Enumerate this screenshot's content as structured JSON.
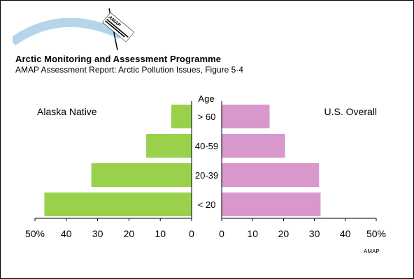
{
  "header": {
    "title": "Arctic Monitoring and Assessment Programme",
    "subtitle": "AMAP Assessment Report: Arctic Pollution Issues, Figure 5·4",
    "logo_text": "AMAP"
  },
  "footer": {
    "credit": "AMAP"
  },
  "chart_data": {
    "type": "bar",
    "orientation": "horizontal-population-pyramid",
    "center_label": "Age",
    "categories": [
      "> 60",
      "40-59",
      "20-39",
      "< 20"
    ],
    "series": [
      {
        "name": "Alaska Native",
        "side": "left",
        "color": "#99d14b",
        "values": [
          6.5,
          14.5,
          32,
          47
        ]
      },
      {
        "name": "U.S. Overall",
        "side": "right",
        "color": "#d898cc",
        "values": [
          15.5,
          20.5,
          31.5,
          32
        ]
      }
    ],
    "xlim": [
      0,
      50
    ],
    "left_ticks": [
      "50%",
      "40",
      "30",
      "20",
      "10",
      "0"
    ],
    "right_ticks": [
      "0",
      "10",
      "20",
      "30",
      "40",
      "50%"
    ],
    "grid": false
  }
}
